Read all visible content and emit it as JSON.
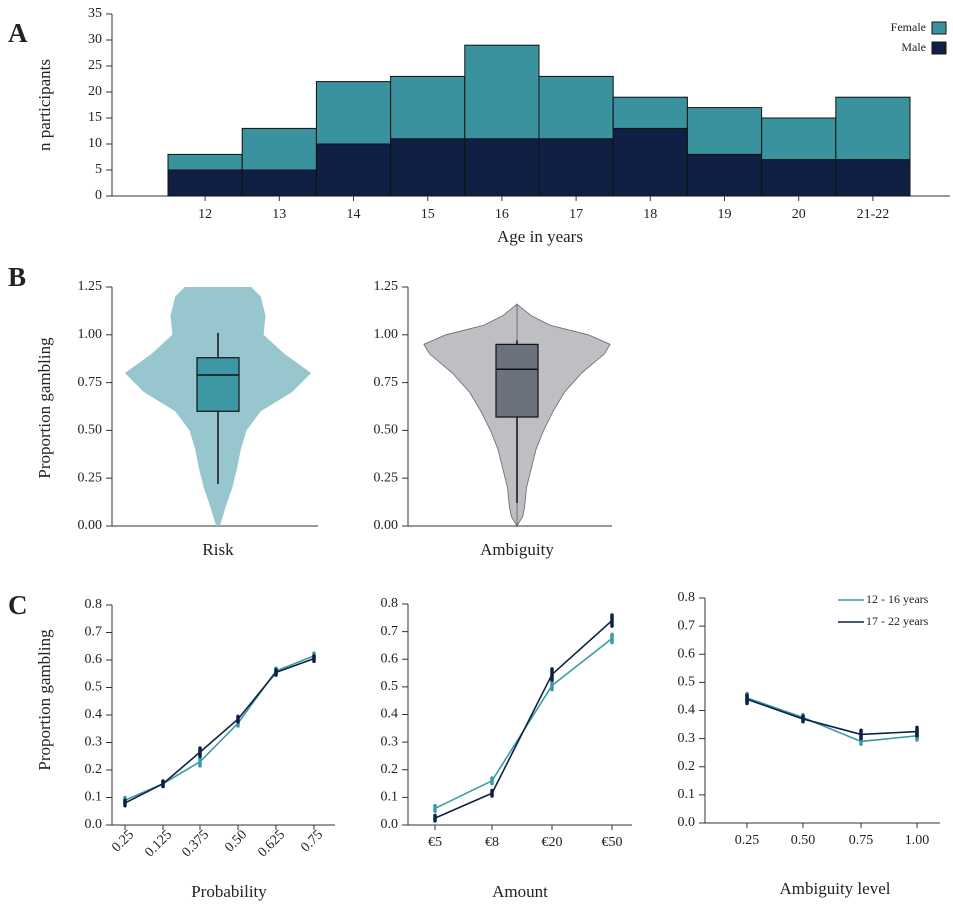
{
  "chart_data": [
    {
      "type": "bar",
      "panel": "A",
      "stacked": true,
      "categories": [
        "12",
        "13",
        "14",
        "15",
        "16",
        "17",
        "18",
        "19",
        "20",
        "21-22"
      ],
      "series": [
        {
          "name": "Male",
          "color": "#0f2044",
          "values": [
            5,
            5,
            10,
            11,
            11,
            11,
            13,
            8,
            7,
            7
          ]
        },
        {
          "name": "Female",
          "color": "#3a929e",
          "values": [
            3,
            8,
            12,
            12,
            18,
            12,
            6,
            9,
            8,
            12
          ]
        }
      ],
      "ylim": [
        0,
        35
      ],
      "yticks": [
        0,
        5,
        10,
        15,
        20,
        25,
        30,
        35
      ],
      "ylabel": "n participants",
      "xlabel": "Age in years",
      "legend": "top-right"
    },
    {
      "type": "violin",
      "panel": "B",
      "ylabel": "Proportion gambling",
      "ylim": [
        0,
        1.25
      ],
      "yticks": [
        {
          "value": 0,
          "label": "0.00"
        },
        0.25,
        {
          "value": 0.5,
          "label": "0.50"
        },
        0.75,
        {
          "value": 1,
          "label": "1.00"
        },
        1.25
      ],
      "boxes": [
        {
          "name": "Risk",
          "color": "#3d97a5",
          "violin_color": "#86bcc7",
          "whisker_low": 0.22,
          "q1": 0.6,
          "median": 0.79,
          "q3": 0.88,
          "whisker_high": 1.01,
          "density": {
            "y": [
              0,
              0.1,
              0.2,
              0.3,
              0.4,
              0.5,
              0.6,
              0.7,
              0.8,
              0.9,
              1.0,
              1.1,
              1.2,
              1.25
            ],
            "width": [
              0.02,
              0.08,
              0.15,
              0.2,
              0.24,
              0.3,
              0.45,
              0.78,
              0.98,
              0.7,
              0.48,
              0.5,
              0.45,
              0.35
            ]
          }
        },
        {
          "name": "Ambiguity",
          "color": "#6b717d",
          "violin_color": "#b1b4b9",
          "whisker_low": 0.12,
          "q1": 0.57,
          "median": 0.82,
          "q3": 0.95,
          "whisker_high": 0.97,
          "density": {
            "y": [
              0,
              0.05,
              0.1,
              0.2,
              0.3,
              0.4,
              0.5,
              0.6,
              0.7,
              0.8,
              0.9,
              0.95,
              1.0,
              1.05,
              1.1,
              1.16
            ],
            "width": [
              0,
              0.06,
              0.08,
              0.1,
              0.15,
              0.2,
              0.28,
              0.38,
              0.5,
              0.68,
              0.92,
              0.98,
              0.75,
              0.35,
              0.15,
              0
            ]
          }
        }
      ]
    },
    {
      "type": "line",
      "panel": "C",
      "xlabel": "Probability",
      "ylabel": "Proportion gambling",
      "categories": [
        "0.25",
        "0.125",
        "0.375",
        "0.50",
        "0.625",
        "0.75"
      ],
      "ylim": [
        0,
        0.8
      ],
      "yticks": [
        {
          "value": 0,
          "label": "0.0"
        },
        0.1,
        0.2,
        0.3,
        0.4,
        0.5,
        0.6,
        0.7,
        0.8
      ],
      "series": [
        {
          "name": "12 - 16 years",
          "color": "#3a9aa6",
          "values": [
            0.09,
            0.15,
            0.23,
            0.37,
            0.56,
            0.615
          ],
          "errors": [
            0.01,
            0.01,
            0.015,
            0.01,
            0.01,
            0.01
          ]
        },
        {
          "name": "17 - 22 years",
          "color": "#0f2044",
          "values": [
            0.08,
            0.15,
            0.265,
            0.385,
            0.555,
            0.605
          ],
          "errors": [
            0.01,
            0.01,
            0.015,
            0.01,
            0.01,
            0.01
          ]
        }
      ]
    },
    {
      "type": "line",
      "xlabel": "Amount",
      "categories": [
        "€5",
        "€8",
        "€20",
        "€50"
      ],
      "ylim": [
        0,
        0.8
      ],
      "yticks": [
        {
          "value": 0,
          "label": "0.0"
        },
        0.1,
        0.2,
        0.3,
        0.4,
        0.5,
        0.6,
        0.7,
        0.8
      ],
      "series": [
        {
          "name": "12 - 16 years",
          "color": "#3a9aa6",
          "values": [
            0.06,
            0.16,
            0.505,
            0.675
          ],
          "errors": [
            0.01,
            0.01,
            0.015,
            0.015
          ]
        },
        {
          "name": "17 - 22 years",
          "color": "#0f2044",
          "values": [
            0.025,
            0.115,
            0.545,
            0.74
          ],
          "errors": [
            0.01,
            0.01,
            0.02,
            0.02
          ]
        }
      ]
    },
    {
      "type": "line",
      "xlabel": "Ambiguity level",
      "legend": "top-right",
      "categories": [
        "0.25",
        "0.50",
        "0.75",
        "1.00"
      ],
      "ylim": [
        0,
        0.8
      ],
      "yticks": [
        {
          "value": 0,
          "label": "0.0"
        },
        0.1,
        0.2,
        0.3,
        0.4,
        0.5,
        0.6,
        0.7,
        0.8
      ],
      "series": [
        {
          "name": "12 - 16 years",
          "color": "#3a9aa6",
          "values": [
            0.445,
            0.375,
            0.29,
            0.31
          ],
          "errors": [
            0.015,
            0.01,
            0.01,
            0.015
          ]
        },
        {
          "name": "17 - 22 years",
          "color": "#0f2044",
          "values": [
            0.44,
            0.37,
            0.315,
            0.325
          ],
          "errors": [
            0.015,
            0.01,
            0.015,
            0.015
          ]
        }
      ]
    }
  ]
}
